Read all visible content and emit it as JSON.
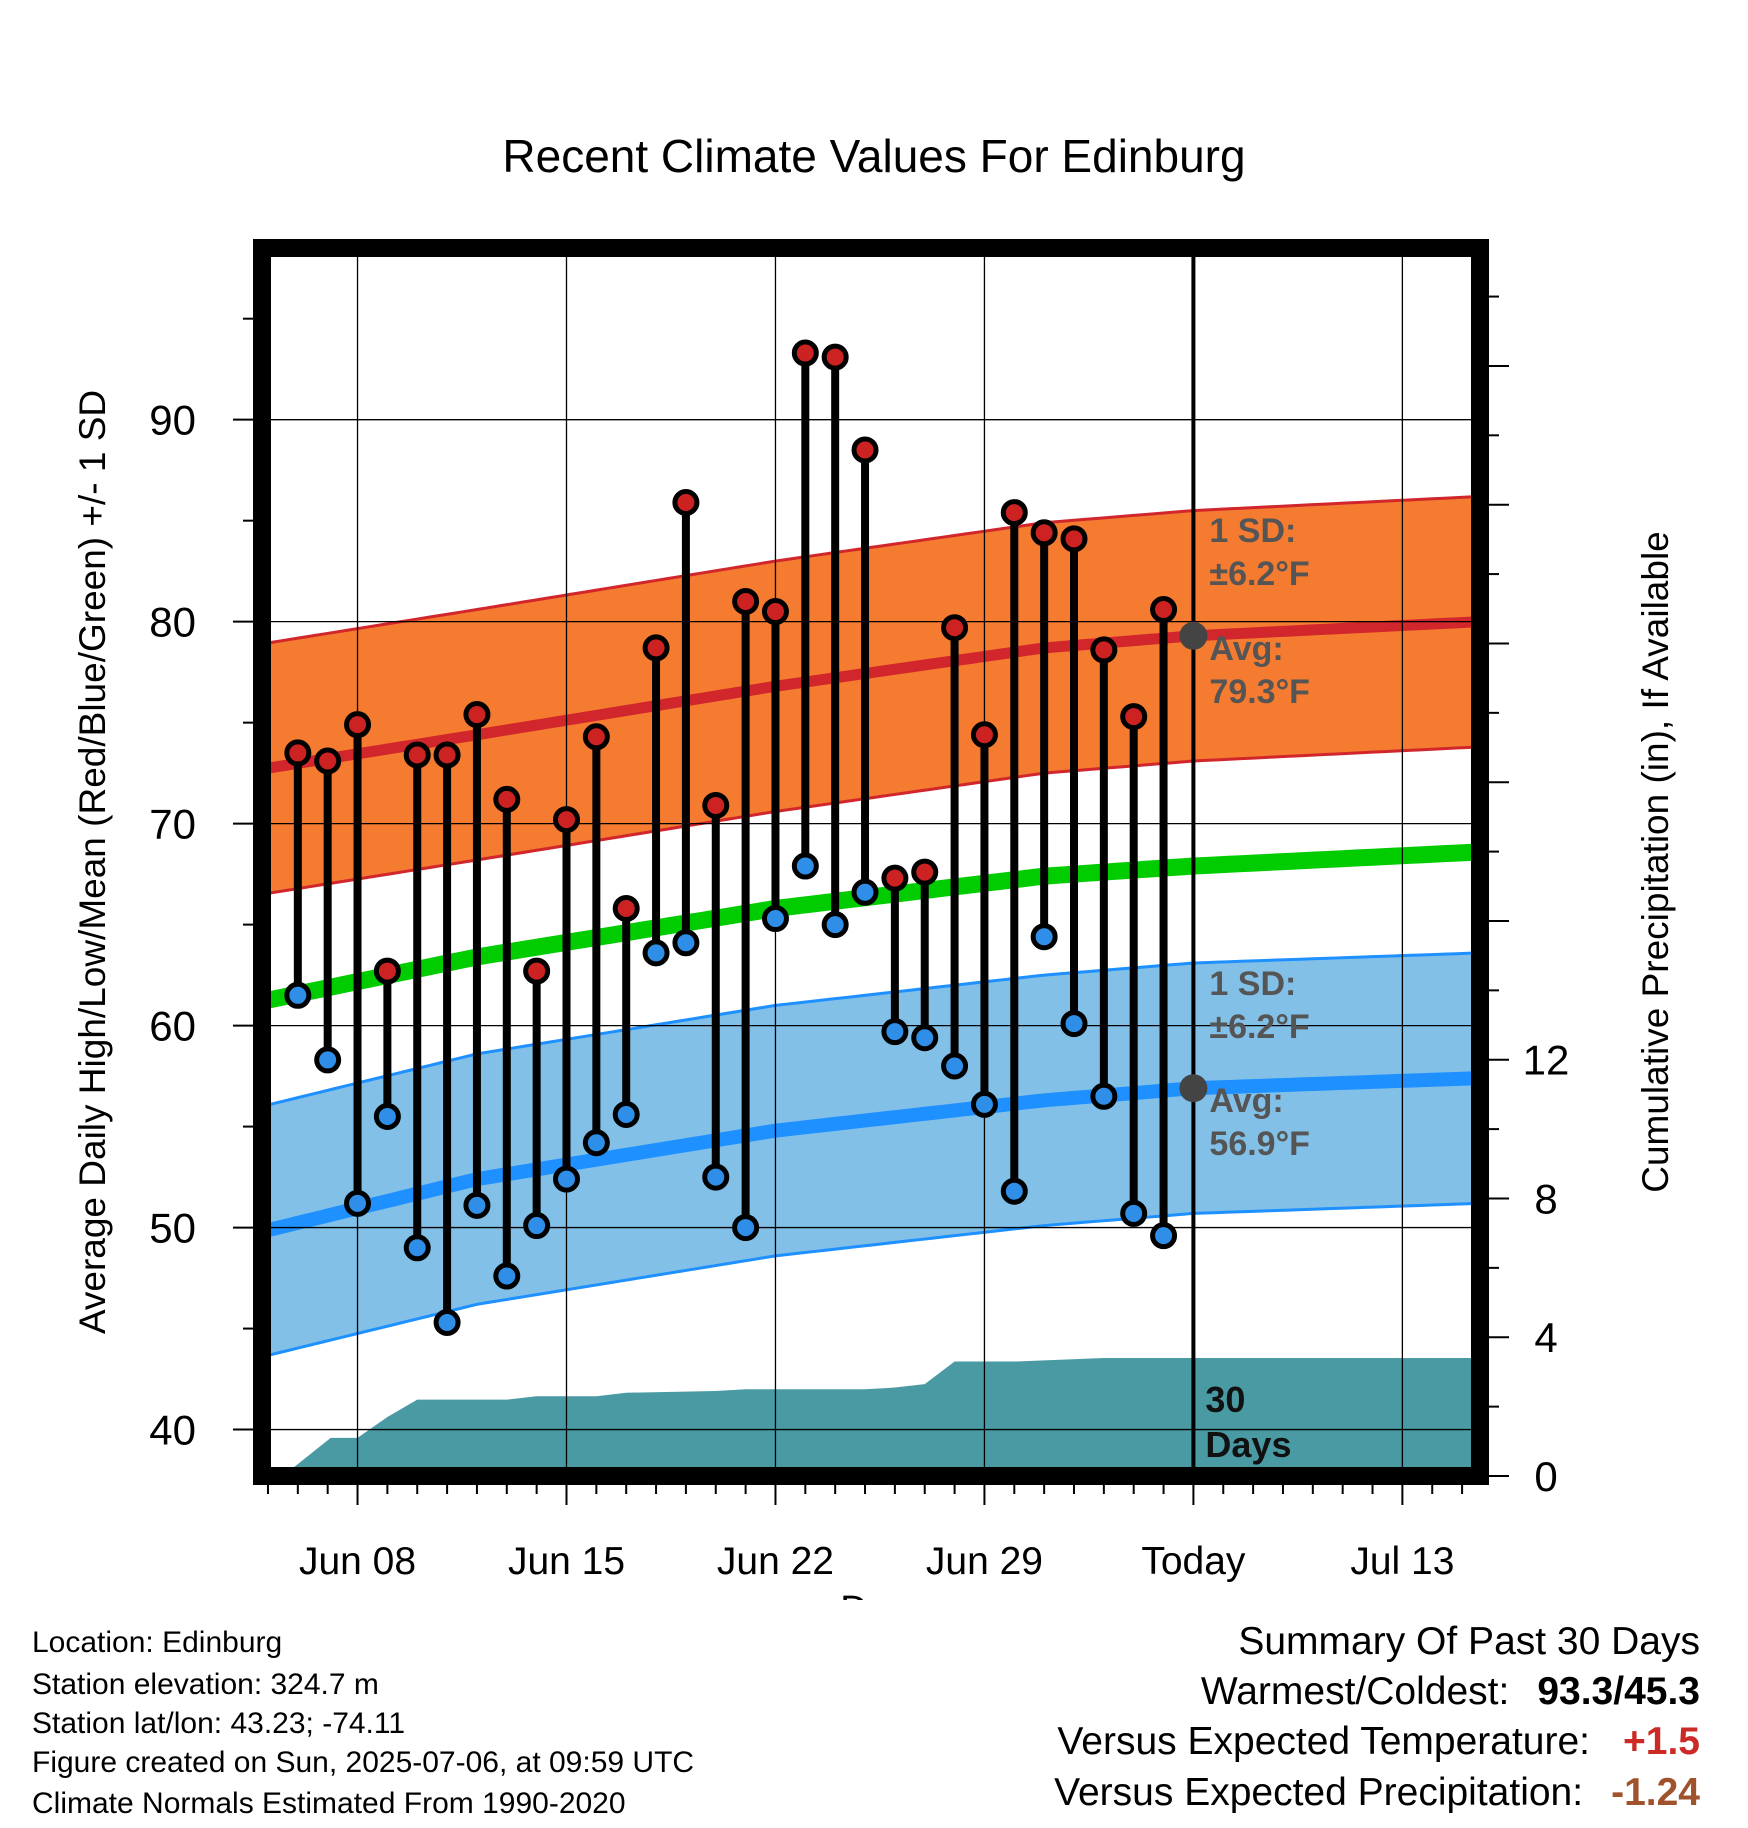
{
  "chart_data": {
    "type": "line",
    "title": "Recent Climate Values For Edinburg",
    "xlabel": "Day",
    "ylabel_left": "Average Daily High/Low/Mean (Red/Blue/Green) +/- 1 SD",
    "ylabel_right": "Cumulative Precipitation (in), If Available",
    "x_ticks": [
      "Jun 08",
      "Jun 15",
      "Jun 22",
      "Jun 29",
      "Today",
      "Jul 13"
    ],
    "x_tick_days": [
      -28,
      -21,
      -14,
      -7,
      0,
      7
    ],
    "xlim_days": [
      -31.2,
      9.6
    ],
    "y_ticks": [
      40,
      50,
      60,
      70,
      80,
      90
    ],
    "ylim": [
      37.7,
      98.5
    ],
    "y2_ticks": [
      0,
      4,
      8,
      12
    ],
    "y2lim": [
      0,
      35.4
    ],
    "grid": true,
    "today_marker": {
      "day": 0,
      "label_lines": [
        "30",
        "Days"
      ]
    },
    "normals": {
      "avg_high": [
        [
          -31.2,
          72.7
        ],
        [
          -24,
          74.4
        ],
        [
          -14,
          76.8
        ],
        [
          -5,
          78.7
        ],
        [
          0,
          79.3
        ],
        [
          9.6,
          80.0
        ]
      ],
      "avg_mean": [
        [
          -31.2,
          61.2
        ],
        [
          -24,
          63.4
        ],
        [
          -14,
          65.8
        ],
        [
          -5,
          67.4
        ],
        [
          0,
          67.9
        ],
        [
          9.6,
          68.6
        ]
      ],
      "avg_low": [
        [
          -31.2,
          49.8
        ],
        [
          -24,
          52.4
        ],
        [
          -14,
          54.8
        ],
        [
          -5,
          56.3
        ],
        [
          0,
          56.9
        ],
        [
          9.6,
          57.4
        ]
      ],
      "high_sd": 6.2,
      "low_sd": 6.2,
      "high_sd_label_lines": [
        "1 SD:",
        "±6.2°F"
      ],
      "high_avg_label_lines": [
        "Avg:",
        "79.3°F"
      ],
      "low_sd_label_lines": [
        "1 SD:",
        "±6.2°F"
      ],
      "low_avg_label_lines": [
        "Avg:",
        "56.9°F"
      ]
    },
    "observations": [
      {
        "day": -30,
        "high": 73.5,
        "low": 61.5
      },
      {
        "day": -29,
        "high": 73.1,
        "low": 58.3
      },
      {
        "day": -28,
        "high": 74.9,
        "low": 51.2
      },
      {
        "day": -27,
        "high": 62.7,
        "low": 55.5
      },
      {
        "day": -26,
        "high": 73.4,
        "low": 49.0
      },
      {
        "day": -25,
        "high": 73.4,
        "low": 45.3
      },
      {
        "day": -24,
        "high": 75.4,
        "low": 51.1
      },
      {
        "day": -23,
        "high": 71.2,
        "low": 47.6
      },
      {
        "day": -22,
        "high": 62.7,
        "low": 50.1
      },
      {
        "day": -21,
        "high": 70.2,
        "low": 52.4
      },
      {
        "day": -20,
        "high": 74.3,
        "low": 54.2
      },
      {
        "day": -19,
        "high": 65.8,
        "low": 55.6
      },
      {
        "day": -18,
        "high": 78.7,
        "low": 63.6
      },
      {
        "day": -17,
        "high": 85.9,
        "low": 64.1
      },
      {
        "day": -16,
        "high": 70.9,
        "low": 52.5
      },
      {
        "day": -15,
        "high": 81.0,
        "low": 50.0
      },
      {
        "day": -14,
        "high": 80.5,
        "low": 65.3
      },
      {
        "day": -13,
        "high": 93.3,
        "low": 67.9
      },
      {
        "day": -12,
        "high": 93.1,
        "low": 65.0
      },
      {
        "day": -11,
        "high": 88.5,
        "low": 66.6
      },
      {
        "day": -10,
        "high": 67.3,
        "low": 59.7
      },
      {
        "day": -9,
        "high": 67.6,
        "low": 59.4
      },
      {
        "day": -8,
        "high": 79.7,
        "low": 58.0
      },
      {
        "day": -7,
        "high": 74.4,
        "low": 56.1
      },
      {
        "day": -6,
        "high": 85.4,
        "low": 51.8
      },
      {
        "day": -5,
        "high": 84.4,
        "low": 64.4
      },
      {
        "day": -4,
        "high": 84.1,
        "low": 60.1
      },
      {
        "day": -3,
        "high": 78.6,
        "low": 56.5
      },
      {
        "day": -2,
        "high": 75.3,
        "low": 50.7
      },
      {
        "day": -1,
        "high": 80.6,
        "low": 49.6
      }
    ],
    "cumulative_precip": [
      [
        -30.5,
        0.0
      ],
      [
        -28.9,
        1.1
      ],
      [
        -28.0,
        1.1
      ],
      [
        -27.0,
        1.7
      ],
      [
        -26.0,
        2.2
      ],
      [
        -23.0,
        2.2
      ],
      [
        -22.0,
        2.3
      ],
      [
        -20.0,
        2.3
      ],
      [
        -19.0,
        2.4
      ],
      [
        -16.0,
        2.45
      ],
      [
        -15.0,
        2.5
      ],
      [
        -12.0,
        2.5
      ],
      [
        -11.0,
        2.5
      ],
      [
        -10.0,
        2.55
      ],
      [
        -9.0,
        2.65
      ],
      [
        -8.0,
        3.3
      ],
      [
        -6.0,
        3.3
      ],
      [
        -3.0,
        3.4
      ],
      [
        0.0,
        3.4
      ],
      [
        9.6,
        3.4
      ]
    ]
  },
  "footer": {
    "location": "Location: Edinburg",
    "elevation": "Station elevation: 324.7 m",
    "latlon": "Station lat/lon: 43.23; -74.11",
    "created": "Figure created on Sun, 2025-07-06, at 09:59 UTC",
    "normals": "Climate Normals Estimated From 1990-2020"
  },
  "summary": {
    "title": "Summary Of Past 30 Days",
    "warmest_label": "Warmest/Coldest:",
    "warmest_value": "93.3/45.3",
    "temp_label": "Versus Expected Temperature:",
    "temp_value": "+1.5",
    "precip_label": "Versus Expected Precipitation:",
    "precip_value": "-1.24",
    "colors": {
      "positive": "#cc2a27",
      "negative": "#a0522d"
    }
  },
  "colors": {
    "high_band": "#f47b30",
    "high_band_edge": "#d1262b",
    "high_avg_line": "#d1262b",
    "low_band": "#82c0e8",
    "low_band_edge": "#1e90ff",
    "low_avg_line": "#1e90ff",
    "mean_line": "#00cc00",
    "precip_fill": "#4a9aa4",
    "high_marker": "#cc2222",
    "low_marker": "#2f8fe8",
    "label_gray": "#555555",
    "today_dot": "#444444"
  }
}
